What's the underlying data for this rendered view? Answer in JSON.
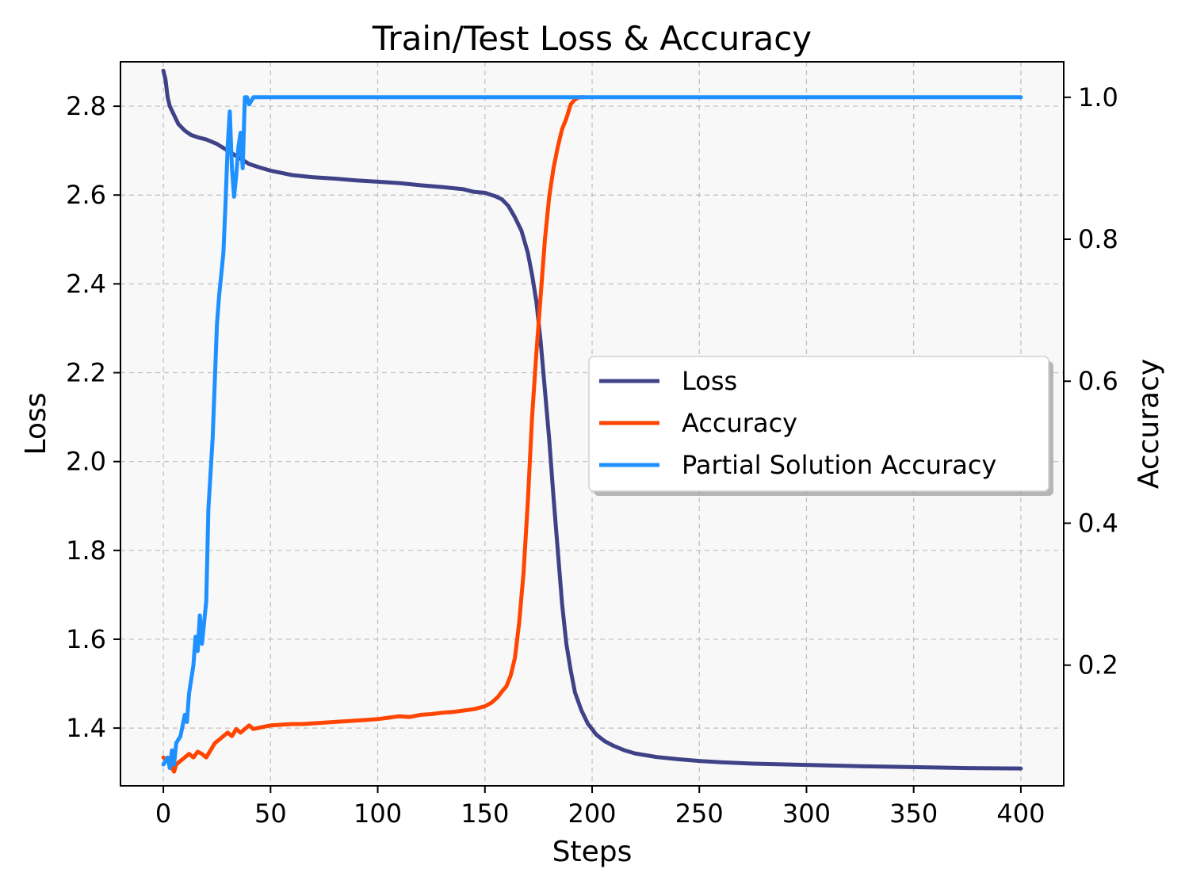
{
  "chart_data": {
    "type": "line",
    "title": "Train/Test Loss & Accuracy",
    "xlabel": "Steps",
    "ylabel_left": "Loss",
    "ylabel_right": "Accuracy",
    "xlim": [
      -20,
      420
    ],
    "ylim_left": [
      1.27,
      2.9
    ],
    "ylim_right": [
      0.03,
      1.05
    ],
    "xticks": [
      0,
      50,
      100,
      150,
      200,
      250,
      300,
      350,
      400
    ],
    "yticks_left": [
      1.4,
      1.6,
      1.8,
      2.0,
      2.2,
      2.4,
      2.6,
      2.8
    ],
    "yticks_right": [
      0.2,
      0.4,
      0.6,
      0.8,
      1.0
    ],
    "grid": true,
    "legend_position": "center-right",
    "series": [
      {
        "name": "Loss",
        "axis": "left",
        "color": "#3f4287",
        "points": [
          [
            0,
            2.88
          ],
          [
            1,
            2.86
          ],
          [
            2,
            2.82
          ],
          [
            3,
            2.8
          ],
          [
            5,
            2.78
          ],
          [
            7,
            2.76
          ],
          [
            10,
            2.745
          ],
          [
            13,
            2.735
          ],
          [
            16,
            2.73
          ],
          [
            20,
            2.725
          ],
          [
            25,
            2.715
          ],
          [
            30,
            2.7
          ],
          [
            35,
            2.685
          ],
          [
            40,
            2.67
          ],
          [
            45,
            2.662
          ],
          [
            50,
            2.655
          ],
          [
            55,
            2.65
          ],
          [
            60,
            2.645
          ],
          [
            70,
            2.64
          ],
          [
            80,
            2.637
          ],
          [
            90,
            2.633
          ],
          [
            100,
            2.63
          ],
          [
            110,
            2.627
          ],
          [
            120,
            2.622
          ],
          [
            130,
            2.618
          ],
          [
            140,
            2.613
          ],
          [
            145,
            2.607
          ],
          [
            150,
            2.605
          ],
          [
            155,
            2.597
          ],
          [
            158,
            2.59
          ],
          [
            161,
            2.575
          ],
          [
            164,
            2.55
          ],
          [
            167,
            2.52
          ],
          [
            170,
            2.47
          ],
          [
            172,
            2.42
          ],
          [
            174,
            2.36
          ],
          [
            176,
            2.27
          ],
          [
            178,
            2.16
          ],
          [
            180,
            2.05
          ],
          [
            182,
            1.92
          ],
          [
            184,
            1.8
          ],
          [
            186,
            1.68
          ],
          [
            188,
            1.59
          ],
          [
            190,
            1.53
          ],
          [
            192,
            1.48
          ],
          [
            195,
            1.44
          ],
          [
            198,
            1.41
          ],
          [
            202,
            1.385
          ],
          [
            206,
            1.37
          ],
          [
            210,
            1.36
          ],
          [
            215,
            1.35
          ],
          [
            220,
            1.343
          ],
          [
            230,
            1.335
          ],
          [
            240,
            1.33
          ],
          [
            250,
            1.326
          ],
          [
            260,
            1.323
          ],
          [
            275,
            1.32
          ],
          [
            300,
            1.317
          ],
          [
            325,
            1.314
          ],
          [
            350,
            1.312
          ],
          [
            375,
            1.31
          ],
          [
            400,
            1.309
          ]
        ]
      },
      {
        "name": "Accuracy",
        "axis": "right",
        "color": "#ff4500",
        "points": [
          [
            0,
            0.07
          ],
          [
            2,
            0.065
          ],
          [
            3,
            0.06
          ],
          [
            4,
            0.055
          ],
          [
            5,
            0.05
          ],
          [
            6,
            0.06
          ],
          [
            8,
            0.065
          ],
          [
            10,
            0.07
          ],
          [
            12,
            0.075
          ],
          [
            14,
            0.07
          ],
          [
            16,
            0.078
          ],
          [
            18,
            0.075
          ],
          [
            20,
            0.07
          ],
          [
            22,
            0.08
          ],
          [
            24,
            0.09
          ],
          [
            26,
            0.095
          ],
          [
            28,
            0.1
          ],
          [
            30,
            0.105
          ],
          [
            32,
            0.1
          ],
          [
            34,
            0.11
          ],
          [
            36,
            0.105
          ],
          [
            38,
            0.11
          ],
          [
            40,
            0.115
          ],
          [
            42,
            0.11
          ],
          [
            45,
            0.112
          ],
          [
            50,
            0.115
          ],
          [
            55,
            0.116
          ],
          [
            60,
            0.117
          ],
          [
            65,
            0.117
          ],
          [
            70,
            0.118
          ],
          [
            75,
            0.119
          ],
          [
            80,
            0.12
          ],
          [
            85,
            0.121
          ],
          [
            90,
            0.122
          ],
          [
            95,
            0.123
          ],
          [
            100,
            0.124
          ],
          [
            105,
            0.126
          ],
          [
            110,
            0.128
          ],
          [
            115,
            0.127
          ],
          [
            120,
            0.13
          ],
          [
            125,
            0.131
          ],
          [
            130,
            0.133
          ],
          [
            135,
            0.134
          ],
          [
            140,
            0.136
          ],
          [
            145,
            0.138
          ],
          [
            150,
            0.142
          ],
          [
            153,
            0.147
          ],
          [
            156,
            0.155
          ],
          [
            158,
            0.163
          ],
          [
            160,
            0.17
          ],
          [
            162,
            0.185
          ],
          [
            164,
            0.21
          ],
          [
            166,
            0.26
          ],
          [
            168,
            0.33
          ],
          [
            170,
            0.43
          ],
          [
            172,
            0.55
          ],
          [
            174,
            0.64
          ],
          [
            176,
            0.72
          ],
          [
            178,
            0.8
          ],
          [
            180,
            0.86
          ],
          [
            182,
            0.9
          ],
          [
            184,
            0.93
          ],
          [
            186,
            0.955
          ],
          [
            188,
            0.97
          ],
          [
            190,
            0.99
          ],
          [
            192,
            0.997
          ],
          [
            194,
            1.0
          ],
          [
            196,
            1.0
          ]
        ]
      },
      {
        "name": "Partial Solution Accuracy",
        "axis": "right",
        "color": "#1e90ff",
        "points": [
          [
            0,
            0.06
          ],
          [
            2,
            0.07
          ],
          [
            3,
            0.055
          ],
          [
            4,
            0.08
          ],
          [
            5,
            0.06
          ],
          [
            6,
            0.09
          ],
          [
            8,
            0.1
          ],
          [
            10,
            0.13
          ],
          [
            11,
            0.12
          ],
          [
            12,
            0.16
          ],
          [
            14,
            0.2
          ],
          [
            15,
            0.24
          ],
          [
            16,
            0.22
          ],
          [
            17,
            0.27
          ],
          [
            18,
            0.23
          ],
          [
            19,
            0.26
          ],
          [
            20,
            0.29
          ],
          [
            21,
            0.42
          ],
          [
            22,
            0.47
          ],
          [
            23,
            0.52
          ],
          [
            24,
            0.6
          ],
          [
            25,
            0.68
          ],
          [
            26,
            0.72
          ],
          [
            27,
            0.75
          ],
          [
            28,
            0.78
          ],
          [
            29,
            0.85
          ],
          [
            30,
            0.93
          ],
          [
            31,
            0.98
          ],
          [
            32,
            0.9
          ],
          [
            33,
            0.86
          ],
          [
            34,
            0.89
          ],
          [
            35,
            0.93
          ],
          [
            36,
            0.95
          ],
          [
            37,
            0.9
          ],
          [
            38,
            1.0
          ],
          [
            39,
            1.0
          ],
          [
            40,
            0.99
          ],
          [
            41,
            0.995
          ],
          [
            42,
            1.0
          ],
          [
            50,
            1.0
          ],
          [
            100,
            1.0
          ],
          [
            150,
            1.0
          ],
          [
            200,
            1.0
          ],
          [
            250,
            1.0
          ],
          [
            300,
            1.0
          ],
          [
            350,
            1.0
          ],
          [
            400,
            1.0
          ]
        ]
      }
    ]
  }
}
